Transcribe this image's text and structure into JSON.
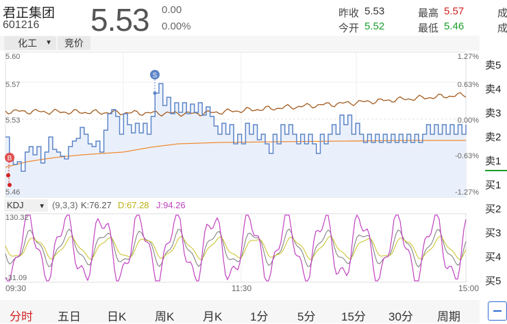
{
  "header": {
    "stock_name": "君正集团",
    "stock_code": "601216",
    "price": "5.53",
    "change": "0.00",
    "change_pct": "0.00%",
    "quotes": {
      "prev_close_label": "昨收",
      "prev_close": "5.53",
      "open_label": "今开",
      "open": "5.52",
      "high_label": "最高",
      "high": "5.57",
      "low_label": "最低",
      "low": "5.46",
      "cut1": "成",
      "cut2": "成"
    }
  },
  "toolbar": {
    "sector": "化工",
    "auction": "竞价"
  },
  "price_chart": {
    "y_left": [
      "5.60",
      "5.57",
      "5.53",
      "5.46"
    ],
    "y_right": [
      "1.27%",
      "0.63%",
      "0.00%",
      "-0.63%",
      "-1.27%"
    ],
    "buy_marker": "B",
    "sell_marker": "S",
    "colors": {
      "price": "#5b84c8",
      "avg": "#f08a30",
      "index": "#a35a1c",
      "fill": "#eaf0fb"
    }
  },
  "kdj": {
    "label": "KDJ",
    "params": "(9,3,3)",
    "k_text": "K:76.27",
    "d_text": "D:67.28",
    "j_text": "J:94.26",
    "y_top": "130.32",
    "y_bottom": "-31.09",
    "colors": {
      "k": "#777777",
      "d": "#c8c020",
      "j": "#c040c0"
    }
  },
  "time_axis": [
    "09:30",
    "11:30",
    "15:00"
  ],
  "tabs": [
    "分时",
    "五日",
    "日K",
    "周K",
    "月K",
    "1分",
    "5分",
    "15分",
    "30分",
    "周期"
  ],
  "active_tab": "分时",
  "order_book": [
    "卖5",
    "卖4",
    "卖3",
    "卖2",
    "卖1",
    "买1",
    "买2",
    "买3",
    "买4",
    "买5"
  ]
}
